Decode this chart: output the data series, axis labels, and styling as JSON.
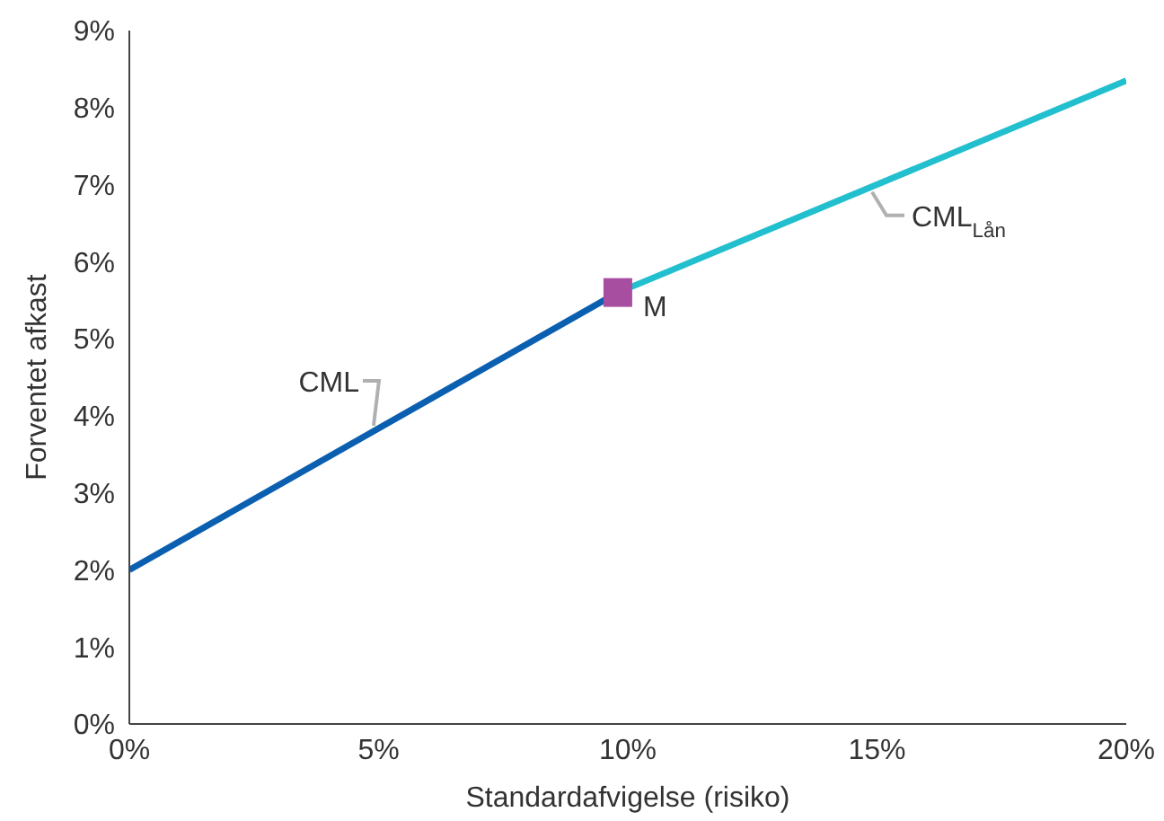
{
  "chart_data": {
    "type": "line",
    "xlabel": "Standardafvigelse (risiko)",
    "ylabel": "Forventet afkast",
    "xlim": [
      0,
      20
    ],
    "xticks": [
      {
        "value": 0,
        "label": "0%"
      },
      {
        "value": 5,
        "label": "5%"
      },
      {
        "value": 10,
        "label": "10%"
      },
      {
        "value": 15,
        "label": "15%"
      },
      {
        "value": 20,
        "label": "20%"
      }
    ],
    "ylim": [
      0,
      9
    ],
    "yticks": [
      {
        "value": 0,
        "label": "0%"
      },
      {
        "value": 1,
        "label": "1%"
      },
      {
        "value": 2,
        "label": "2%"
      },
      {
        "value": 3,
        "label": "3%"
      },
      {
        "value": 4,
        "label": "4%"
      },
      {
        "value": 5,
        "label": "5%"
      },
      {
        "value": 6,
        "label": "6%"
      },
      {
        "value": 7,
        "label": "7%"
      },
      {
        "value": 8,
        "label": "8%"
      },
      {
        "value": 9,
        "label": "9%"
      }
    ],
    "grid": false,
    "legend": false,
    "marker": "none",
    "series": [
      {
        "name": "CML",
        "color": "#0a5fb0",
        "x": [
          0,
          9.8
        ],
        "values": [
          2,
          5.6
        ]
      },
      {
        "name": "CML$_{Lån}$",
        "color": "#22bfcf",
        "x": [
          9.8,
          20
        ],
        "values": [
          5.6,
          8.35
        ]
      },
      {
        "name": "M",
        "type": "scatter",
        "marker": "square",
        "color": "#a84ea0",
        "x": [
          9.8
        ],
        "values": [
          5.6
        ]
      }
    ]
  }
}
